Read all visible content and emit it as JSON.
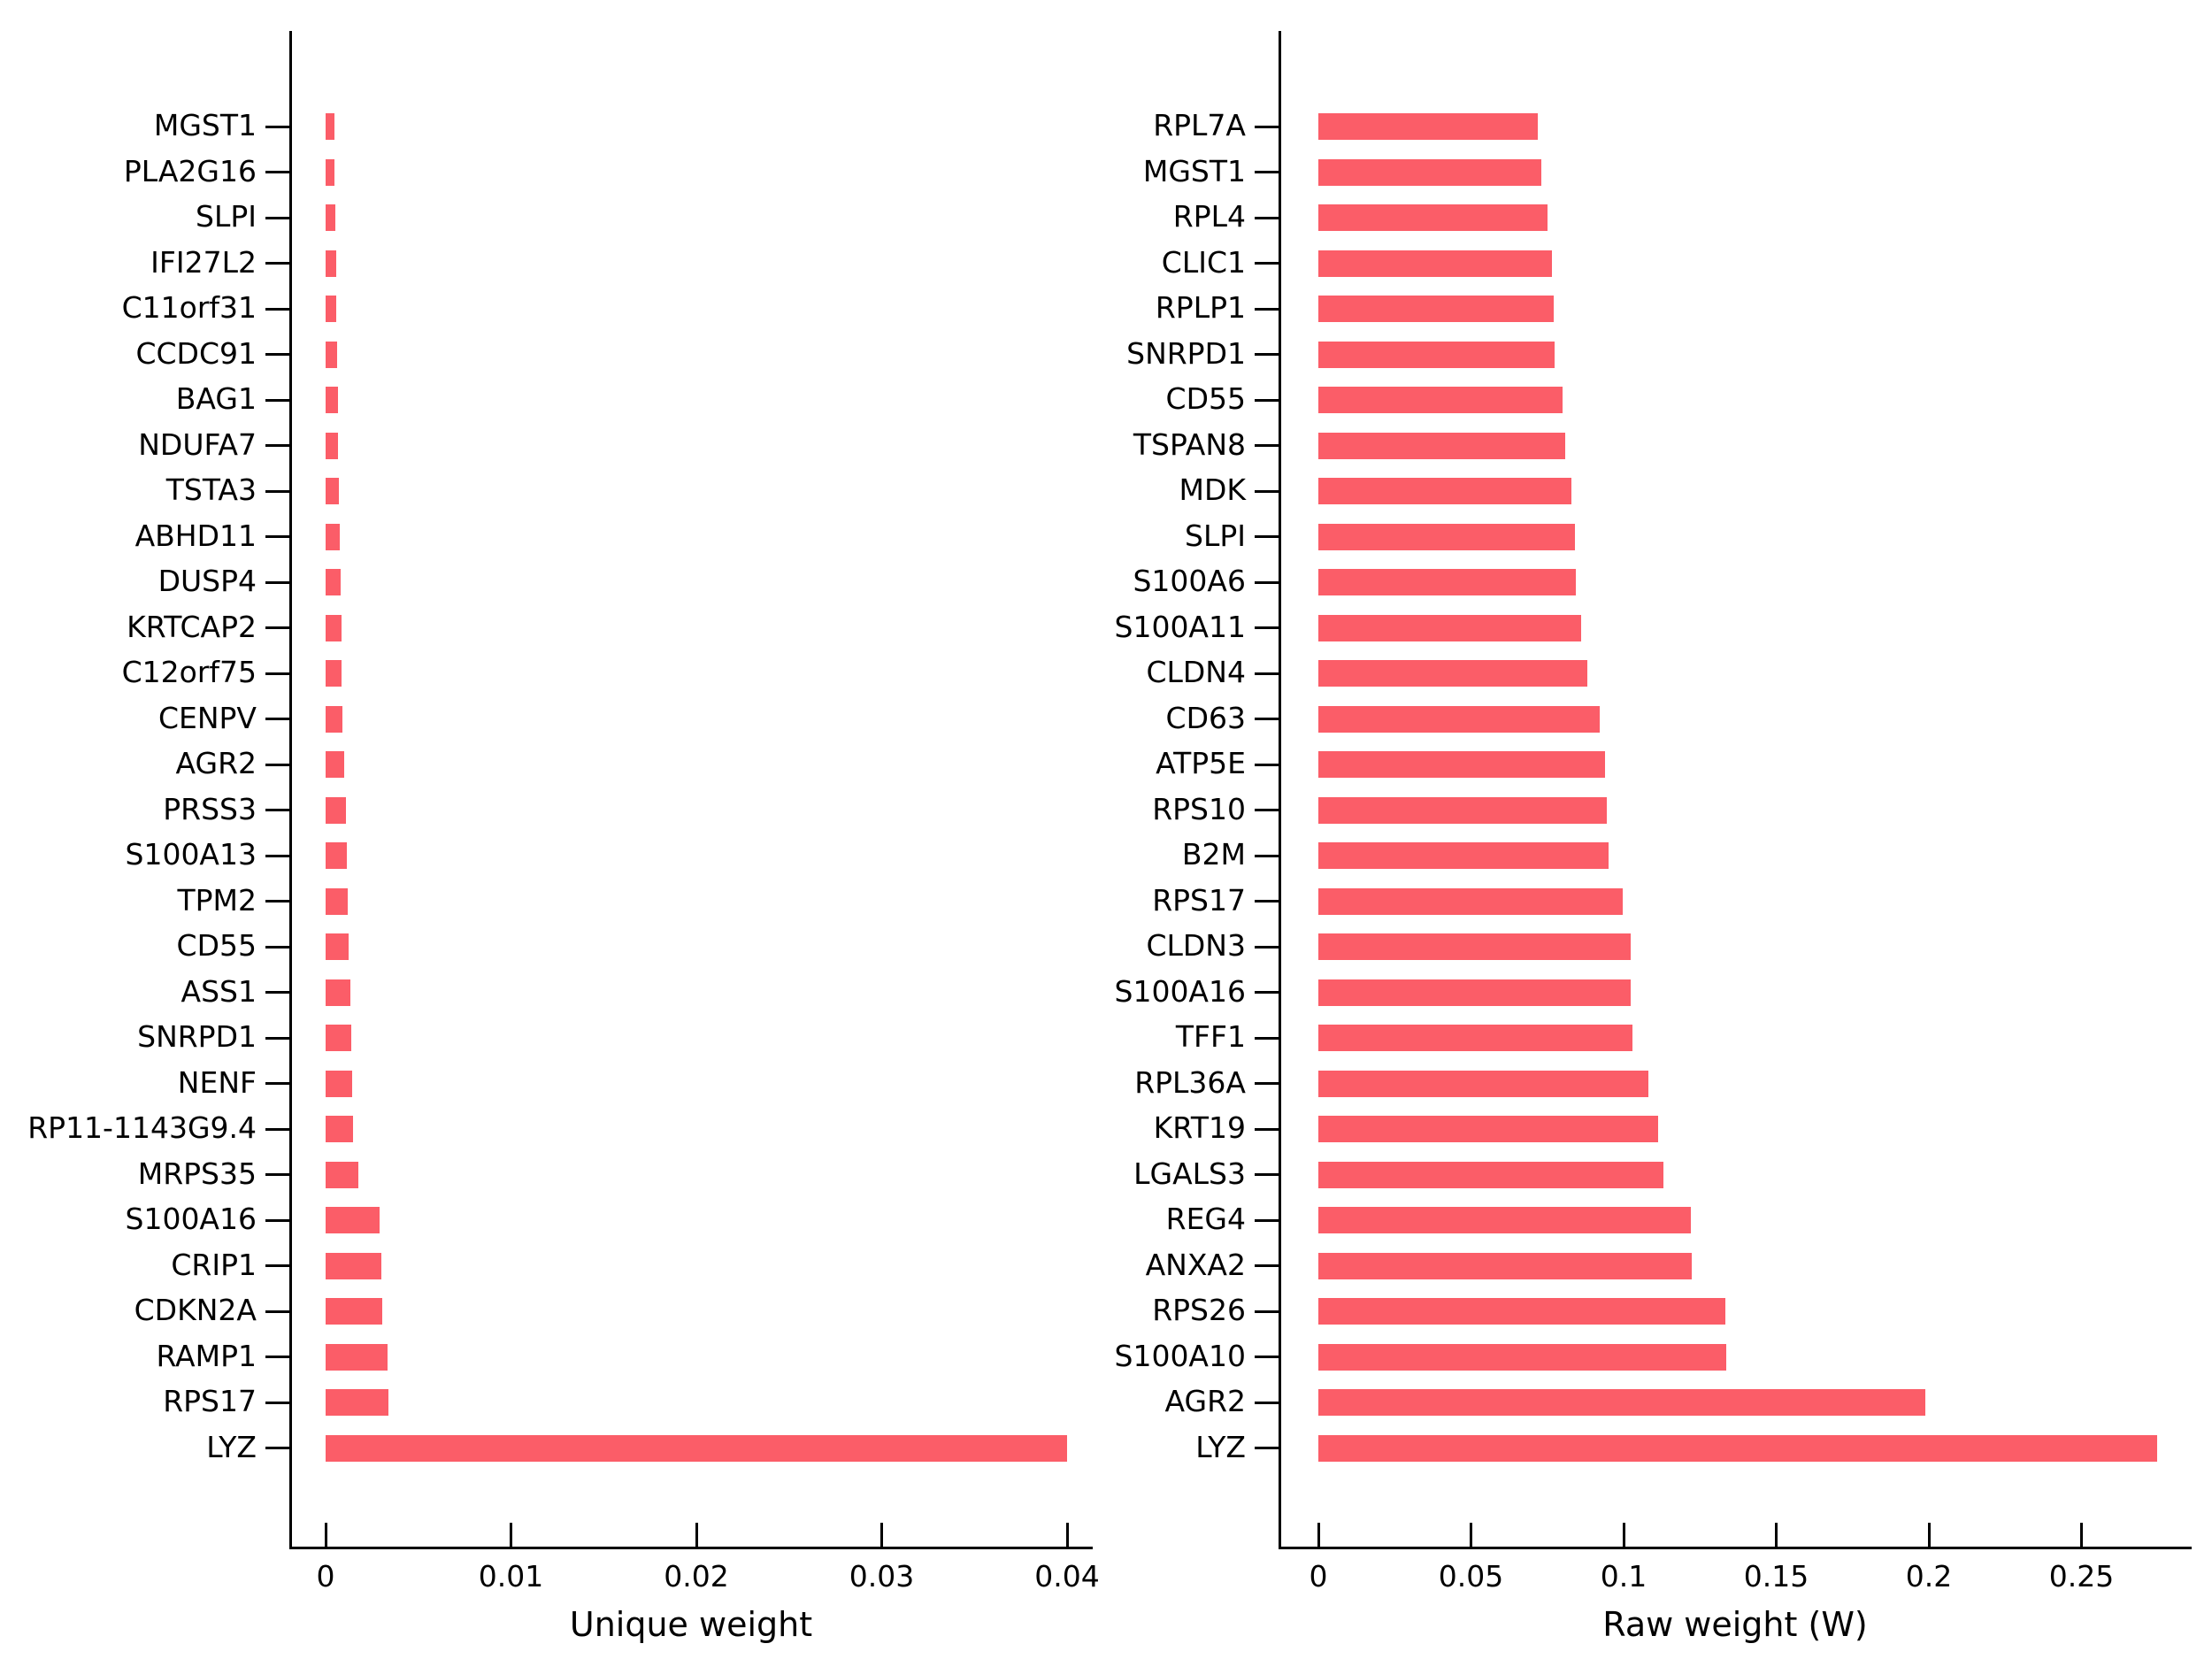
{
  "figure": {
    "background_color": "#ffffff",
    "bar_color": "#FB5D68",
    "axis_color": "#000000",
    "text_color": "#000000"
  },
  "chart_data": [
    {
      "type": "bar",
      "orientation": "horizontal",
      "title": "",
      "xlabel": "Unique weight",
      "ylabel": "",
      "grid": false,
      "legend": "none",
      "xlim": [
        0,
        0.0414
      ],
      "xticks": [
        0,
        0.01,
        0.02,
        0.03,
        0.04
      ],
      "xtick_labels": [
        "0",
        "0.01",
        "0.02",
        "0.03",
        "0.04"
      ],
      "categories_top_to_bottom": [
        "MGST1",
        "PLA2G16",
        "SLPI",
        "IFI27L2",
        "C11orf31",
        "CCDC91",
        "BAG1",
        "NDUFA7",
        "TSTA3",
        "ABHD11",
        "DUSP4",
        "KRTCAP2",
        "C12orf75",
        "CENPV",
        "AGR2",
        "PRSS3",
        "S100A13",
        "TPM2",
        "CD55",
        "ASS1",
        "SNRPD1",
        "NENF",
        "RP11-1143G9.4",
        "MRPS35",
        "S100A16",
        "CRIP1",
        "CDKN2A",
        "RAMP1",
        "RPS17",
        "LYZ"
      ],
      "values": [
        0.00048,
        0.0005,
        0.00053,
        0.00056,
        0.00059,
        0.00063,
        0.00066,
        0.00068,
        0.00071,
        0.00076,
        0.00079,
        0.00084,
        0.00088,
        0.00091,
        0.001,
        0.0011,
        0.00114,
        0.0012,
        0.00126,
        0.00132,
        0.00138,
        0.00144,
        0.0015,
        0.00177,
        0.00292,
        0.003,
        0.00305,
        0.00335,
        0.00338,
        0.04
      ]
    },
    {
      "type": "bar",
      "orientation": "horizontal",
      "title": "",
      "xlabel": "Raw weight (W)",
      "ylabel": "",
      "grid": false,
      "legend": "none",
      "xlim": [
        0,
        0.2861
      ],
      "xticks": [
        0,
        0.05,
        0.1,
        0.15,
        0.2,
        0.25
      ],
      "xtick_labels": [
        "0",
        "0.05",
        "0.1",
        "0.15",
        "0.2",
        "0.25"
      ],
      "categories_top_to_bottom": [
        "RPL7A",
        "MGST1",
        "RPL4",
        "CLIC1",
        "RPLP1",
        "SNRPD1",
        "CD55",
        "TSPAN8",
        "MDK",
        "SLPI",
        "S100A6",
        "S100A11",
        "CLDN4",
        "CD63",
        "ATP5E",
        "RPS10",
        "B2M",
        "RPS17",
        "CLDN3",
        "S100A16",
        "TFF1",
        "RPL36A",
        "KRT19",
        "LGALS3",
        "REG4",
        "ANXA2",
        "RPS26",
        "S100A10",
        "AGR2",
        "LYZ"
      ],
      "values": [
        0.072,
        0.0731,
        0.0752,
        0.0766,
        0.0771,
        0.0774,
        0.08,
        0.081,
        0.0828,
        0.084,
        0.0844,
        0.086,
        0.088,
        0.0923,
        0.094,
        0.0946,
        0.095,
        0.0996,
        0.1022,
        0.1024,
        0.103,
        0.1082,
        0.1114,
        0.113,
        0.1219,
        0.1224,
        0.1334,
        0.1337,
        0.1987,
        0.2749
      ]
    }
  ]
}
